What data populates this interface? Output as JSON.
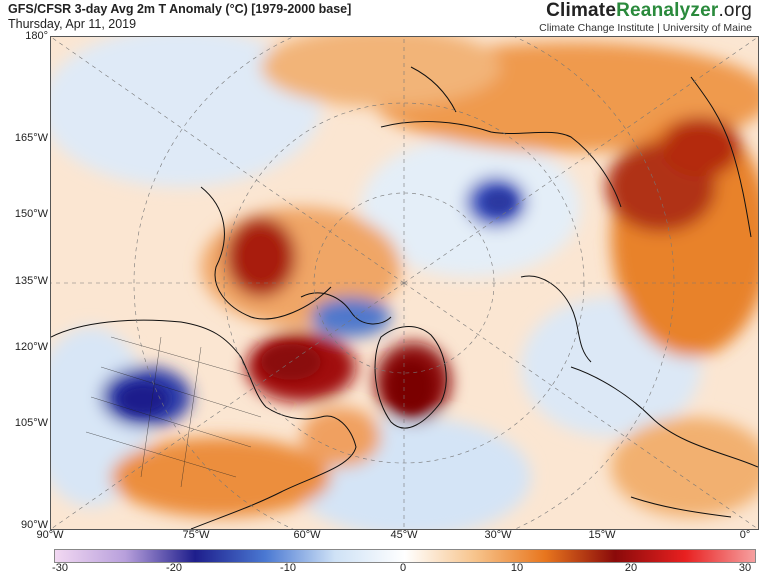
{
  "header": {
    "title": "GFS/CFSR 3-day Avg 2m T Anomaly (°C) [1979-2000 base]",
    "date": "Thursday, Apr 11, 2019"
  },
  "brand": {
    "part1": "Climate",
    "part2": "Reanalyzer",
    "part3": ".org",
    "subtitle": "Climate Change Institute | University of Maine"
  },
  "map": {
    "lat_labels": [
      "180°",
      "165°W",
      "150°W",
      "135°W",
      "120°W",
      "105°W",
      "90°W"
    ],
    "lon_labels": [
      "90°W",
      "75°W",
      "60°W",
      "45°W",
      "30°W",
      "15°W",
      "0°"
    ]
  },
  "colorbar": {
    "ticks": [
      "-30",
      "-20",
      "-10",
      "0",
      "10",
      "20",
      "30"
    ],
    "colors": {
      "very_cold": "#f2d8f2",
      "cold_purple": "#b8a0dc",
      "deep_blue": "#1e1e8c",
      "blue": "#4a78d2",
      "light_blue": "#cfe2f6",
      "near_zero": "#ffffff",
      "light_orange": "#f7c48c",
      "orange": "#e8761e",
      "dark_red": "#8a0a0a",
      "red": "#e82020",
      "pink": "#f6a0a0"
    }
  },
  "anomaly_regions": [
    {
      "name": "siberia-warm",
      "level": "orange"
    },
    {
      "name": "alaska-canada-warm",
      "level": "dark-red"
    },
    {
      "name": "greenland-warm",
      "level": "dark-red"
    },
    {
      "name": "us-plains-cold",
      "level": "deep-blue"
    },
    {
      "name": "arctic-ocean-cold",
      "level": "blue"
    }
  ]
}
